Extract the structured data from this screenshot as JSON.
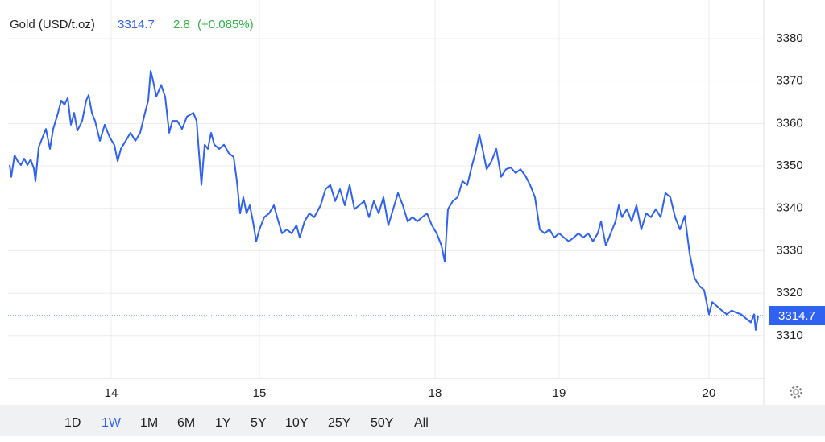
{
  "chart_data": {
    "type": "line",
    "title": "Gold (USD/t.oz)",
    "last_price": 3314.7,
    "change": 2.8,
    "change_percent_label": "(+0.085%)",
    "color": "#2f62f0",
    "x": [
      2,
      4,
      8,
      12,
      16,
      20,
      24,
      28,
      32,
      34,
      38,
      43,
      47,
      52,
      56,
      62,
      66,
      70,
      74,
      78,
      82,
      86,
      92,
      97,
      100,
      104,
      108,
      114,
      120,
      126,
      132,
      136,
      140,
      146,
      152,
      158,
      164,
      170,
      174,
      177,
      180,
      184,
      190,
      195,
      200,
      204,
      210,
      216,
      222,
      230,
      234,
      240,
      244,
      248,
      252,
      256,
      262,
      268,
      274,
      280,
      284,
      288,
      292,
      296,
      300,
      304,
      308,
      312,
      318,
      324,
      330,
      334,
      340,
      346,
      352,
      358,
      362,
      368,
      374,
      380,
      388,
      394,
      400,
      406,
      412,
      418,
      424,
      430,
      436,
      442,
      448,
      454,
      460,
      466,
      472,
      478,
      484,
      490,
      496,
      502,
      508,
      514,
      520,
      526,
      532,
      538,
      542,
      546,
      552,
      558,
      564,
      570,
      576,
      580,
      585,
      590,
      594,
      600,
      606,
      612,
      618,
      624,
      630,
      636,
      642,
      648,
      654,
      660,
      666,
      672,
      678,
      684,
      690,
      696,
      702,
      708,
      714,
      720,
      726,
      732,
      736,
      742,
      748,
      754,
      758,
      762,
      768,
      774,
      780,
      786,
      792,
      798,
      804,
      810,
      816,
      822,
      828,
      834,
      840,
      846,
      852,
      858,
      864,
      870,
      874,
      880,
      886,
      892,
      898,
      904,
      910,
      916,
      922,
      926,
      928,
      931
    ],
    "series": [
      {
        "name": "Gold",
        "values": [
          3350.2,
          3347.4,
          3352.5,
          3351.1,
          3350.2,
          3351.7,
          3350.2,
          3351.5,
          3349.4,
          3346.4,
          3354.4,
          3356.8,
          3358.7,
          3354.0,
          3358.7,
          3362.5,
          3365.4,
          3364.4,
          3366.0,
          3359.7,
          3362.5,
          3358.3,
          3360.6,
          3365.4,
          3366.7,
          3362.5,
          3360.6,
          3355.9,
          3359.7,
          3356.8,
          3354.9,
          3351.1,
          3354.0,
          3355.9,
          3357.8,
          3355.9,
          3357.8,
          3362.5,
          3365.4,
          3372.4,
          3370.1,
          3366.3,
          3369.1,
          3366.3,
          3357.8,
          3360.6,
          3360.6,
          3358.7,
          3361.6,
          3362.5,
          3360.6,
          3345.5,
          3355.0,
          3354.0,
          3357.8,
          3355.0,
          3354.0,
          3355.0,
          3353.0,
          3352.1,
          3346.4,
          3338.8,
          3342.6,
          3338.8,
          3340.7,
          3336.9,
          3332.2,
          3335.0,
          3337.9,
          3338.8,
          3340.7,
          3337.9,
          3334.1,
          3335.0,
          3334.1,
          3336.0,
          3333.1,
          3336.9,
          3338.8,
          3337.9,
          3340.7,
          3344.5,
          3345.5,
          3341.7,
          3344.5,
          3340.7,
          3345.5,
          3339.8,
          3340.7,
          3341.7,
          3337.9,
          3341.7,
          3338.8,
          3342.6,
          3336.0,
          3339.8,
          3343.6,
          3340.7,
          3336.9,
          3337.9,
          3336.9,
          3337.9,
          3338.8,
          3336.0,
          3334.1,
          3331.2,
          3327.4,
          3339.8,
          3341.7,
          3342.6,
          3346.4,
          3345.5,
          3350.2,
          3353.0,
          3357.4,
          3353.0,
          3349.2,
          3351.1,
          3354.0,
          3347.4,
          3349.2,
          3349.6,
          3348.3,
          3349.2,
          3347.7,
          3345.5,
          3342.6,
          3335.0,
          3334.1,
          3335.0,
          3333.1,
          3334.1,
          3333.1,
          3332.2,
          3333.1,
          3334.1,
          3333.1,
          3334.1,
          3332.2,
          3334.1,
          3336.9,
          3331.2,
          3334.1,
          3336.9,
          3340.7,
          3337.9,
          3339.8,
          3336.9,
          3340.7,
          3335.0,
          3338.8,
          3337.9,
          3339.8,
          3337.9,
          3343.6,
          3342.6,
          3337.9,
          3335.0,
          3338.2,
          3329.3,
          3323.6,
          3321.7,
          3320.7,
          3315.0,
          3317.9,
          3316.9,
          3315.9,
          3315.0,
          3315.9,
          3315.4,
          3315.0,
          3314.0,
          3313.1,
          3315.0,
          3311.3,
          3314.7
        ]
      }
    ],
    "xlim": [
      0,
      938
    ],
    "xticks": [
      {
        "value": 128,
        "label": "14"
      },
      {
        "value": 312,
        "label": "15"
      },
      {
        "value": 530,
        "label": "18"
      },
      {
        "value": 684,
        "label": "19"
      },
      {
        "value": 870,
        "label": "20"
      }
    ],
    "ylim": [
      3299.9,
      3389.1
    ],
    "yticks": [
      3310,
      3320,
      3330,
      3340,
      3350,
      3360,
      3370,
      3380
    ],
    "grid": true,
    "range_buttons": [
      "1D",
      "1W",
      "1M",
      "6M",
      "1Y",
      "5Y",
      "10Y",
      "25Y",
      "50Y",
      "All"
    ],
    "selected_range": "1W"
  }
}
